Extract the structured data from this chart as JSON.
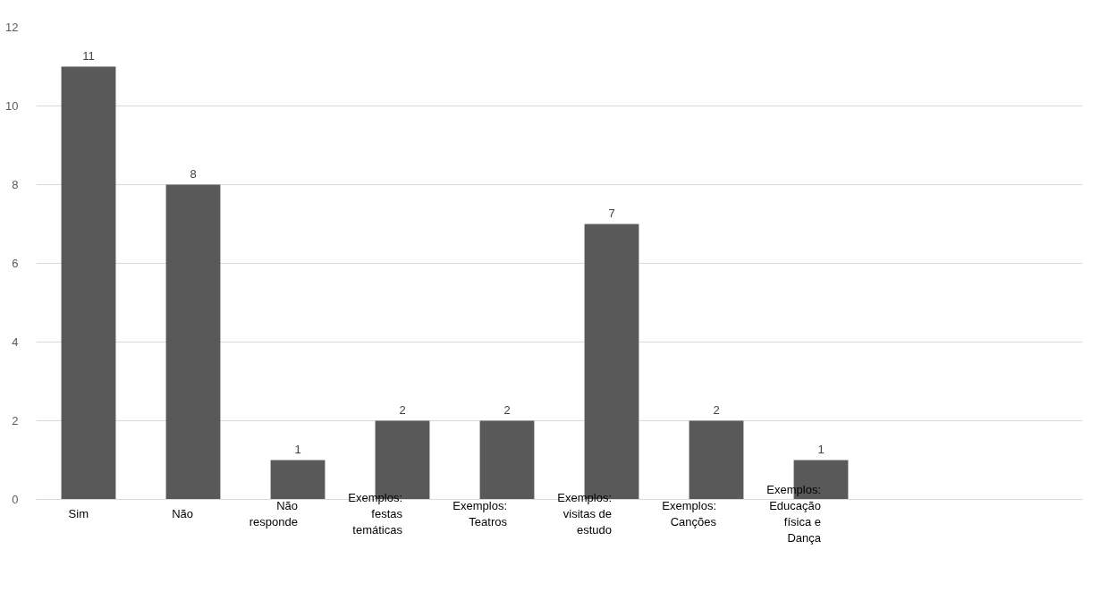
{
  "chart_data": {
    "type": "bar",
    "categories": [
      "Sim",
      "Não",
      "Não responde",
      "Exemplos: festas temáticas",
      "Exemplos: Teatros",
      "Exemplos: visitas de estudo",
      "Exemplos: Canções",
      "Exemplos: Educação física e Dança",
      null,
      null
    ],
    "values": [
      11,
      8,
      1,
      2,
      2,
      7,
      2,
      1,
      null,
      null
    ],
    "color": "#595959",
    "ylim": [
      0,
      12
    ],
    "yticks": [
      0,
      2,
      4,
      6,
      8,
      10,
      12
    ],
    "grid": "y",
    "data_labels": true
  }
}
